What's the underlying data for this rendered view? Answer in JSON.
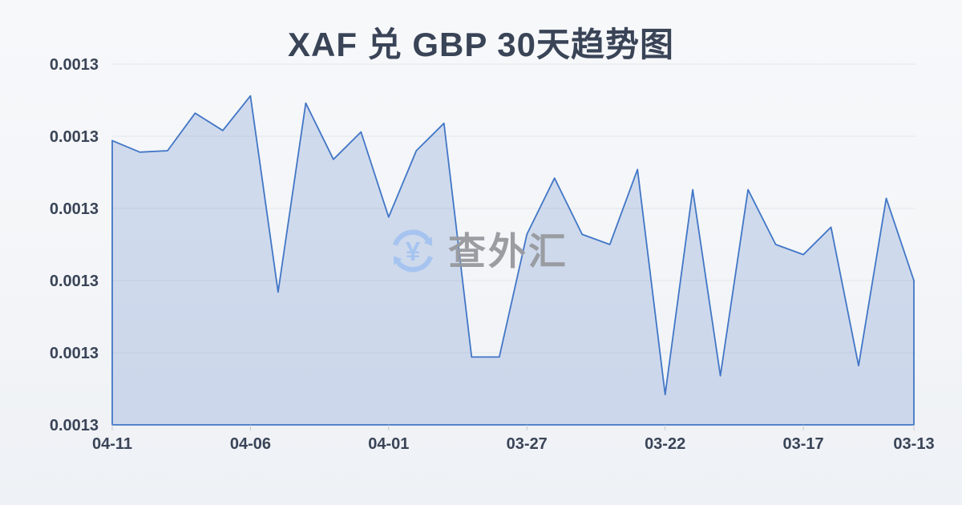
{
  "title": "XAF 兑 GBP 30天趋势图",
  "watermark": {
    "text": "查外汇",
    "icon": "currency-exchange-icon",
    "icon_color": "#a4c3f0",
    "text_color": "#97999e"
  },
  "colors": {
    "background_top": "#f7f8fa",
    "background_bottom": "#eef1f5",
    "line": "#4176c6",
    "area_fill": "rgba(77,118,198,0.22)",
    "grid": "#e4e6e9",
    "tick": "#c6c9ce",
    "axis_text": "#3a4457",
    "title_text": "#3a4457"
  },
  "chart_data": {
    "type": "area",
    "title": "XAF 兑 GBP 30天趋势图",
    "xlabel": "",
    "ylabel": "",
    "grid": true,
    "legend": false,
    "x_axis_direction": "dates descend left to right (newest first)",
    "x": [
      "04-11",
      "04-10",
      "04-09",
      "04-08",
      "04-07",
      "04-06",
      "04-05",
      "04-04",
      "04-03",
      "04-02",
      "04-01",
      "03-31",
      "03-30",
      "03-29",
      "03-28",
      "03-27",
      "03-26",
      "03-25",
      "03-24",
      "03-23",
      "03-22",
      "03-21",
      "03-20",
      "03-19",
      "03-18",
      "03-17",
      "03-16",
      "03-15",
      "03-14",
      "03-13"
    ],
    "values": [
      0.0013197,
      0.0013189,
      0.001319,
      0.0013216,
      0.0013204,
      0.0013228,
      0.0013092,
      0.0013223,
      0.0013184,
      0.0013203,
      0.0013144,
      0.001319,
      0.0013209,
      0.0013047,
      0.0013047,
      0.0013132,
      0.0013171,
      0.0013132,
      0.0013125,
      0.0013177,
      0.0013021,
      0.0013163,
      0.0013034,
      0.0013163,
      0.0013125,
      0.0013118,
      0.0013137,
      0.0013041,
      0.0013157,
      0.00131
    ],
    "ylim": [
      0.0013,
      0.001325
    ],
    "y_tick_labels": [
      "0.0013",
      "0.0013",
      "0.0013",
      "0.0013",
      "0.0013",
      "0.0013"
    ],
    "x_tick_indices": [
      0,
      5,
      10,
      15,
      20,
      25,
      29
    ],
    "x_tick_labels": [
      "04-11",
      "04-06",
      "04-01",
      "03-27",
      "03-22",
      "03-17",
      "03-13"
    ]
  }
}
